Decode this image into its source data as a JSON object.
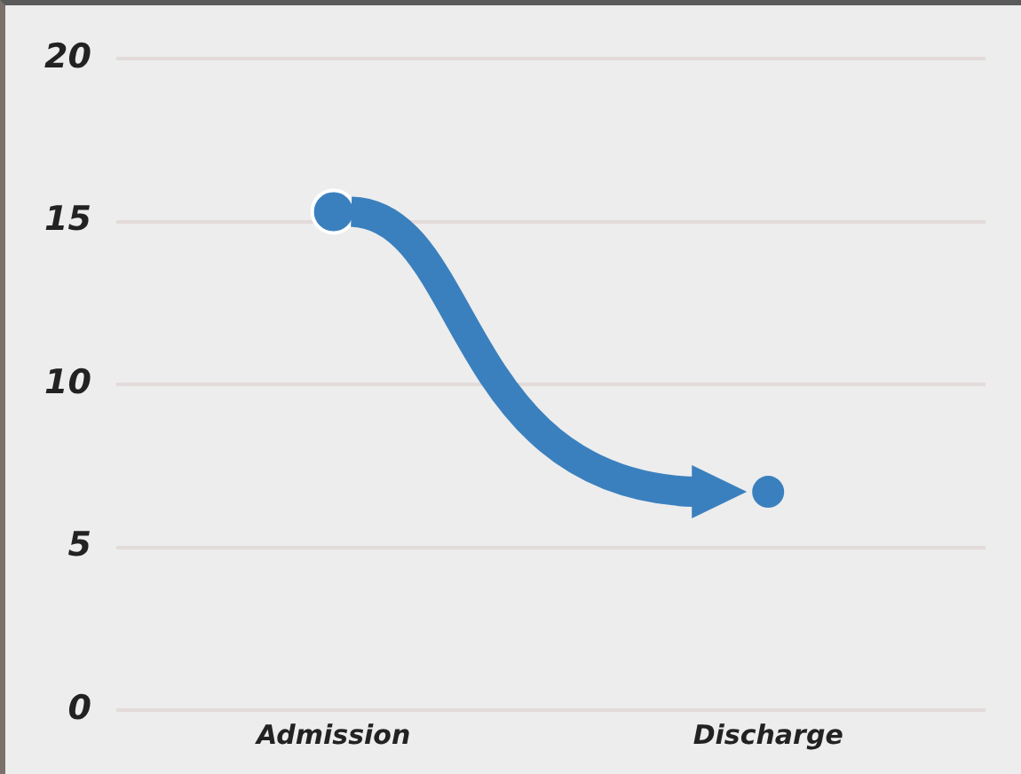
{
  "chart_data": {
    "type": "scatter",
    "categories": [
      "Admission",
      "Discharge"
    ],
    "series": [
      {
        "color": "#3b80be",
        "values": [
          15.3,
          6.7
        ]
      }
    ],
    "ylim": [
      0,
      20
    ],
    "yticks": [
      0,
      5,
      10,
      15,
      20
    ],
    "grid": "y",
    "legend": false,
    "marker": "circle"
  }
}
